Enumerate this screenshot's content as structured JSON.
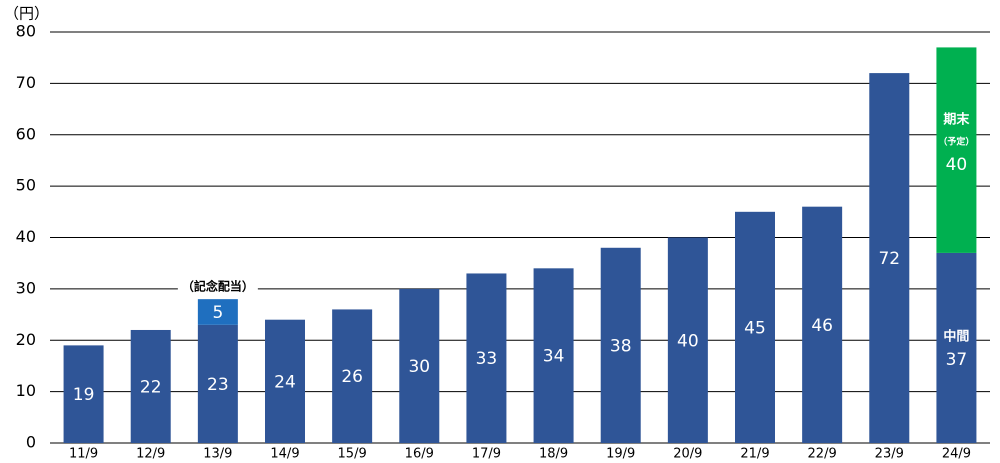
{
  "chart_data": {
    "type": "bar",
    "stacked": true,
    "y_label": "（円）",
    "categories": [
      "11/9",
      "12/9",
      "13/9",
      "14/9",
      "15/9",
      "16/9",
      "17/9",
      "18/9",
      "19/9",
      "20/9",
      "21/9",
      "22/9",
      "23/9",
      "24/9"
    ],
    "series": [
      {
        "name": "中間",
        "color": "#2f5597",
        "values": [
          19,
          22,
          23,
          24,
          26,
          30,
          33,
          34,
          38,
          40,
          45,
          46,
          72,
          37
        ]
      },
      {
        "name": "（記念配当）",
        "color": "#1f6fbf",
        "values": [
          null,
          null,
          5,
          null,
          null,
          null,
          null,
          null,
          null,
          null,
          null,
          null,
          null,
          null
        ]
      },
      {
        "name": "期末",
        "note": "（予定）",
        "color": "#00b050",
        "values": [
          null,
          null,
          null,
          null,
          null,
          null,
          null,
          null,
          null,
          null,
          null,
          null,
          null,
          40
        ]
      }
    ],
    "ylim": [
      0,
      80
    ],
    "yticks": [
      0,
      10,
      20,
      30,
      40,
      50,
      60,
      70,
      80
    ],
    "grid": true
  }
}
